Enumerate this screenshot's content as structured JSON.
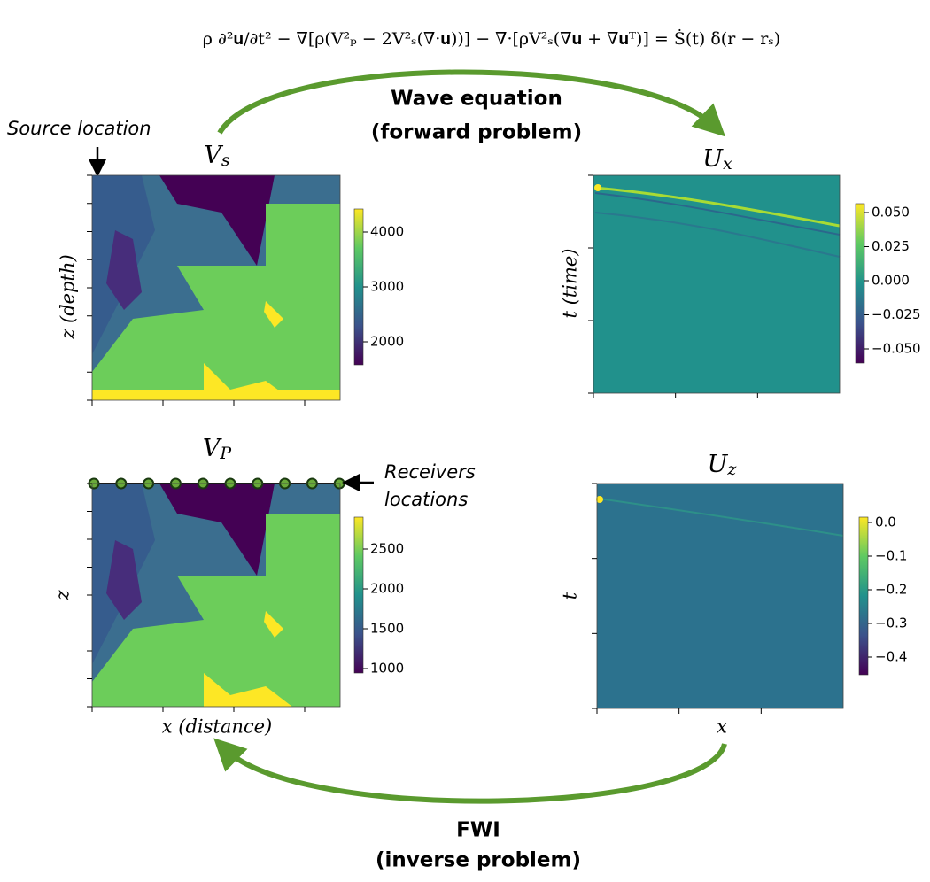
{
  "equation": "ρ ∂²𝐮/∂t² − ∇[ρ(V²ₚ − 2V²ₛ(∇·𝐮))] − ∇·[ρV²ₛ(∇𝐮 + ∇𝐮ᵀ)] = Ṡ(t) δ(r − rₛ)",
  "source_label": "Source location",
  "forward": {
    "title": "Wave equation",
    "subtitle": "(forward problem)"
  },
  "inverse": {
    "title": "FWI",
    "subtitle": "(inverse problem)"
  },
  "receivers_label": [
    "Receivers",
    "locations"
  ],
  "panels": [
    {
      "title": {
        "base": "V",
        "sub": "s"
      },
      "y_label": "z (depth)",
      "colorbar_ticks": [
        "4000",
        "3000",
        "2000"
      ]
    },
    {
      "title": {
        "base": "U",
        "sub": "x"
      },
      "y_label": "t (time)",
      "colorbar_ticks": [
        "0.050",
        "0.025",
        "0.000",
        "−0.025",
        "−0.050"
      ]
    },
    {
      "title": {
        "base": "V",
        "sub": "P"
      },
      "y_label": "z",
      "x_label": "x (distance)",
      "colorbar_ticks": [
        "2500",
        "2000",
        "1500",
        "1000"
      ]
    },
    {
      "title": {
        "base": "U",
        "sub": "z"
      },
      "y_label": "t",
      "x_label": "x",
      "colorbar_ticks": [
        "0.0",
        "−0.1",
        "−0.2",
        "−0.3",
        "−0.4"
      ]
    }
  ]
}
